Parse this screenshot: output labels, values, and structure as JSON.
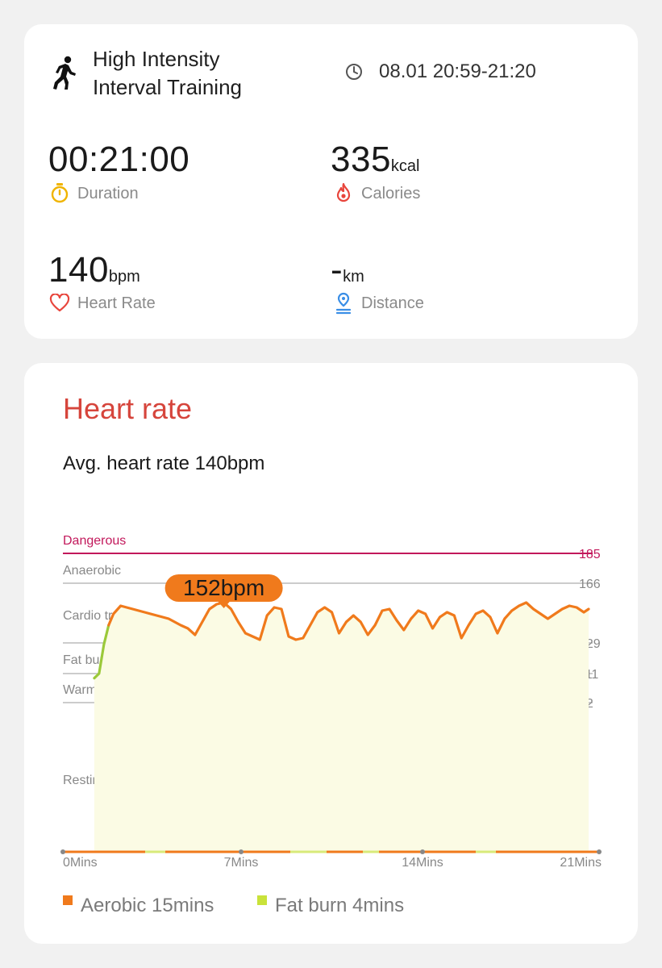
{
  "workout": {
    "title_line1": "High Intensity",
    "title_line2": "Interval Training",
    "time_range": "08.01 20:59-21:20",
    "icon": "running-person-icon"
  },
  "stats": {
    "duration": {
      "value": "00:21:00",
      "label": "Duration",
      "icon": "stopwatch-icon",
      "icon_color": "#f0b400"
    },
    "calories": {
      "value": "335",
      "unit": "kcal",
      "label": "Calories",
      "icon": "flame-icon",
      "icon_color": "#e8453c"
    },
    "heart_rate": {
      "value": "140",
      "unit": "bpm",
      "label": "Heart Rate",
      "icon": "heart-icon",
      "icon_color": "#e8453c"
    },
    "distance": {
      "value": "-",
      "unit": "km",
      "label": "Distance",
      "icon": "location-pin-icon",
      "icon_color": "#3a8ee6"
    }
  },
  "heart_rate_card": {
    "title": "Heart rate",
    "title_color": "#d6453c",
    "avg_text": "Avg. heart rate 140bpm",
    "peak_badge": "152bpm",
    "legend": [
      {
        "label": "Aerobic 15mins",
        "color": "#f07a1c"
      },
      {
        "label": "Fat burn 4mins",
        "color": "#c9e23a"
      }
    ]
  },
  "chart_data": {
    "type": "line",
    "xlabel": "",
    "ylabel": "",
    "x_ticks": [
      "0Mins",
      "7Mins",
      "14Mins",
      "21Mins"
    ],
    "xlim": [
      0,
      21
    ],
    "zones": [
      {
        "name": "Dangerous",
        "threshold": 185,
        "color": "#c2185b"
      },
      {
        "name": "Anaerobic",
        "threshold": 166,
        "color": "#bbbbbb"
      },
      {
        "name": "Cardio training",
        "threshold": null,
        "color": "#bbbbbb"
      },
      {
        "name": "Fat burning",
        "threshold": 129,
        "color": "#bbbbbb"
      },
      {
        "name": "Warm up",
        "threshold": 111,
        "color": "#bbbbbb"
      },
      {
        "name": "Resting",
        "threshold": 92,
        "color": "#bbbbbb"
      }
    ],
    "series": [
      {
        "x": [
          0.4,
          0.6,
          0.8,
          1.0,
          1.2,
          1.5,
          2.0,
          2.5,
          3.0,
          3.5,
          4.0,
          4.3,
          4.6,
          4.9,
          5.2,
          5.5,
          5.8,
          6.1,
          6.4,
          6.7,
          7.0,
          7.3,
          7.6,
          7.9,
          8.2,
          8.5,
          8.8,
          9.1,
          9.4,
          9.7,
          10.0,
          10.3,
          10.6,
          10.9,
          11.2,
          11.5,
          11.8,
          12.1,
          12.4,
          12.7,
          13.0,
          13.3,
          13.6,
          13.9,
          14.2,
          14.5,
          14.8,
          15.1,
          15.4,
          15.7,
          16.0,
          16.3,
          16.6,
          16.9,
          17.2,
          17.5,
          17.8,
          18.1,
          18.4,
          18.7,
          19.0,
          19.3,
          19.6,
          19.9,
          20.2,
          20.5,
          20.8,
          21.0
        ],
        "y": [
          108,
          111,
          128,
          140,
          147,
          152,
          150,
          148,
          146,
          144,
          140,
          138,
          134,
          142,
          150,
          153,
          154,
          150,
          142,
          135,
          133,
          131,
          146,
          151,
          150,
          133,
          131,
          132,
          140,
          148,
          151,
          148,
          135,
          142,
          146,
          142,
          134,
          140,
          149,
          150,
          143,
          137,
          144,
          149,
          147,
          138,
          145,
          148,
          146,
          132,
          140,
          147,
          149,
          145,
          135,
          144,
          149,
          152,
          154,
          150,
          147,
          144,
          147,
          150,
          152,
          151,
          148,
          150
        ]
      }
    ]
  }
}
